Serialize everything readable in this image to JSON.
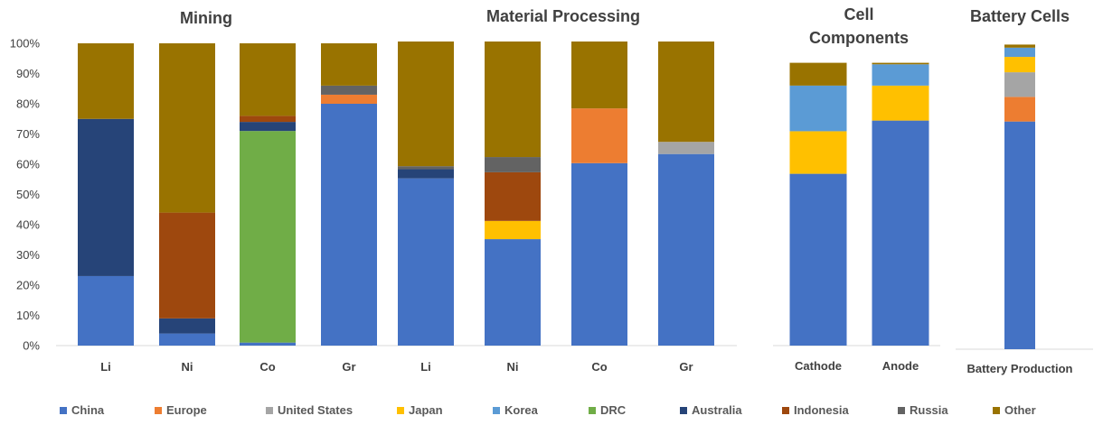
{
  "chart_data": {
    "type": "bar",
    "stacked": true,
    "ylim": [
      0,
      100
    ],
    "yticks": [
      "0%",
      "10%",
      "20%",
      "30%",
      "40%",
      "50%",
      "60%",
      "70%",
      "80%",
      "90%",
      "100%"
    ],
    "series_names": [
      "China",
      "Europe",
      "United States",
      "Japan",
      "Korea",
      "DRC",
      "Australia",
      "Indonesia",
      "Russia",
      "Other"
    ],
    "colors": {
      "China": "#4472C4",
      "Europe": "#ED7D31",
      "United States": "#A5A5A5",
      "Japan": "#FFC000",
      "Korea": "#5B9BD5",
      "DRC": "#70AD47",
      "Australia": "#264478",
      "Indonesia": "#9E480E",
      "Russia": "#636363",
      "Other": "#997300"
    },
    "panels": [
      {
        "title": "Mining",
        "categories": [
          "Li",
          "Ni",
          "Co",
          "Gr"
        ],
        "bars": [
          {
            "China": 23,
            "Australia": 52,
            "Other": 25
          },
          {
            "China": 4,
            "Australia": 5,
            "Indonesia": 35,
            "Other": 56
          },
          {
            "China": 1,
            "DRC": 70,
            "Australia": 3,
            "Indonesia": 2,
            "Other": 24
          },
          {
            "China": 80,
            "Europe": 3,
            "Russia": 3,
            "Other": 14
          }
        ]
      },
      {
        "title": "Material Processing",
        "categories": [
          "Li",
          "Ni",
          "Co",
          "Gr"
        ],
        "bars": [
          {
            "China": 55,
            "Australia": 3,
            "Russia": 1,
            "Other": 41
          },
          {
            "China": 35,
            "Japan": 6,
            "Indonesia": 16,
            "Russia": 5,
            "Other": 38
          },
          {
            "China": 60,
            "Europe": 18,
            "Other": 22
          },
          {
            "China": 63,
            "United States": 4,
            "Other": 33
          }
        ]
      },
      {
        "title": "Cell Components",
        "categories": [
          "Cathode",
          "Anode"
        ],
        "bars": [
          {
            "China": 56.5,
            "Japan": 14,
            "Korea": 15,
            "Other": 7.5
          },
          {
            "China": 74,
            "Japan": 11.5,
            "Korea": 7,
            "Other": 0.5
          }
        ]
      },
      {
        "title": "Battery Cells",
        "categories": [
          "Battery Production"
        ],
        "bars": [
          {
            "China": 74,
            "Europe": 8,
            "United States": 8,
            "Japan": 5,
            "Korea": 3,
            "Other": 1
          }
        ]
      }
    ]
  }
}
